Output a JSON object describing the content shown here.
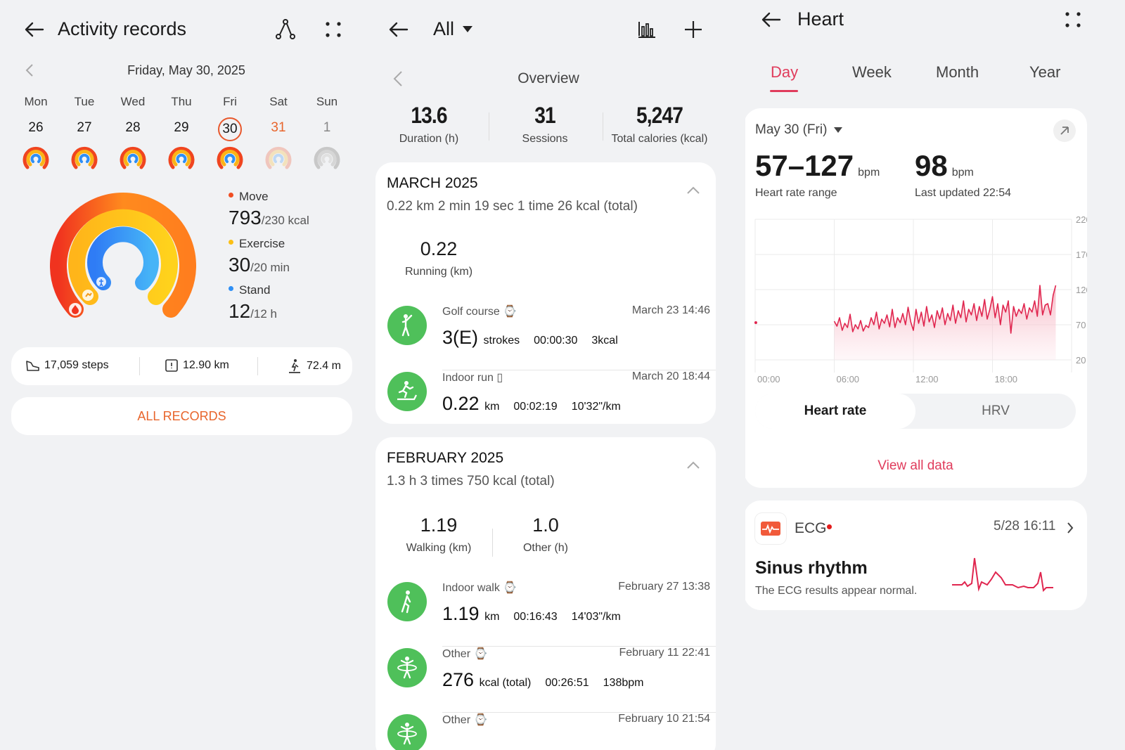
{
  "activity": {
    "title": "Activity records",
    "date": "Friday, May 30, 2025",
    "week": [
      {
        "day": "Mon",
        "date": "26",
        "state": "full"
      },
      {
        "day": "Tue",
        "date": "27",
        "state": "full"
      },
      {
        "day": "Wed",
        "date": "28",
        "state": "full"
      },
      {
        "day": "Thu",
        "date": "29",
        "state": "full"
      },
      {
        "day": "Fri",
        "date": "30",
        "state": "selected"
      },
      {
        "day": "Sat",
        "date": "31",
        "state": "faded"
      },
      {
        "day": "Sun",
        "date": "1",
        "state": "empty"
      }
    ],
    "move": {
      "label": "Move",
      "value": "793",
      "goal": "/230 kcal",
      "color": "#f04e23"
    },
    "exercise": {
      "label": "Exercise",
      "value": "30",
      "goal": "/20 min",
      "color": "#fbbf15"
    },
    "stand": {
      "label": "Stand",
      "value": "12",
      "goal": "/12 h",
      "color": "#2f8ff5"
    },
    "steps": "17,059 steps",
    "distance": "12.90 km",
    "climb": "72.4 m",
    "all_records": "ALL RECORDS"
  },
  "records": {
    "filter": "All",
    "overview_label": "Overview",
    "overview": [
      {
        "value": "13.6",
        "label": "Duration (h)"
      },
      {
        "value": "31",
        "label": "Sessions"
      },
      {
        "value": "5,247",
        "label": "Total calories (kcal)"
      }
    ],
    "march": {
      "title": "MARCH 2025",
      "summary": "0.22 km  2 min 19 sec  1 time  26 kcal (total)",
      "stat_value": "0.22",
      "stat_label": "Running (km)",
      "items": [
        {
          "name": "Golf course",
          "time": "March 23 14:46",
          "big": "3(E)",
          "unit": "strokes",
          "e1": "00:00:30",
          "e2": "3kcal",
          "icon": "golf-icon"
        },
        {
          "name": "Indoor run",
          "time": "March 20 18:44",
          "big": "0.22",
          "unit": "km",
          "e1": "00:02:19",
          "e2": "10'32\"/km",
          "icon": "treadmill-icon"
        }
      ]
    },
    "february": {
      "title": "FEBRUARY 2025",
      "summary": "1.3 h  3 times  750 kcal (total)",
      "stats": [
        {
          "value": "1.19",
          "label": "Walking (km)"
        },
        {
          "value": "1.0",
          "label": "Other (h)"
        }
      ],
      "items": [
        {
          "name": "Indoor walk",
          "time": "February 27 13:38",
          "big": "1.19",
          "unit": "km",
          "e1": "00:16:43",
          "e2": "14'03\"/km",
          "icon": "walk-icon"
        },
        {
          "name": "Other",
          "time": "February 11 22:41",
          "big": "276",
          "unit": "kcal (total)",
          "e1": "00:26:51",
          "e2": "138bpm",
          "icon": "hula-hoop-icon"
        },
        {
          "name": "Other",
          "time": "February 10 21:54",
          "big": "",
          "unit": "",
          "e1": "",
          "e2": "",
          "icon": "hula-hoop-icon"
        }
      ]
    }
  },
  "heart": {
    "title": "Heart",
    "tabs": [
      "Day",
      "Week",
      "Month",
      "Year"
    ],
    "active_tab": "Day",
    "date": "May 30 (Fri)",
    "range_value": "57–127",
    "range_unit": "bpm",
    "range_label": "Heart rate range",
    "last_value": "98",
    "last_unit": "bpm",
    "last_label": "Last updated 22:54",
    "toggle": [
      "Heart rate",
      "HRV"
    ],
    "view_all": "View all data",
    "ecg_label": "ECG",
    "ecg_time": "5/28 16:11",
    "ecg_result": "Sinus rhythm",
    "ecg_desc": "The ECG results appear normal.",
    "accent": "#e03c5c"
  },
  "chart_data": {
    "type": "line",
    "title": "",
    "xlabel": "",
    "ylabel": "",
    "x_ticks": [
      "00:00",
      "06:00",
      "12:00",
      "18:00"
    ],
    "y_ticks": [
      220,
      170,
      120,
      70,
      20
    ],
    "ylim": [
      20,
      220
    ],
    "xlim_hours": [
      0,
      24
    ],
    "grid": true,
    "series": [
      {
        "x_hours": [
          0.05,
          6.0,
          6.2,
          6.4,
          6.6,
          6.8,
          7.0,
          7.2,
          7.4,
          7.6,
          7.8,
          8.0,
          8.2,
          8.4,
          8.6,
          8.8,
          9.0,
          9.2,
          9.4,
          9.6,
          9.8,
          10.0,
          10.2,
          10.4,
          10.6,
          10.8,
          11.0,
          11.2,
          11.4,
          11.6,
          11.8,
          12.0,
          12.2,
          12.4,
          12.6,
          12.8,
          13.0,
          13.2,
          13.4,
          13.6,
          13.8,
          14.0,
          14.2,
          14.4,
          14.6,
          14.8,
          15.0,
          15.2,
          15.4,
          15.6,
          15.8,
          16.0,
          16.2,
          16.4,
          16.6,
          16.8,
          17.0,
          17.2,
          17.4,
          17.6,
          17.8,
          18.0,
          18.2,
          18.4,
          18.6,
          18.8,
          19.0,
          19.2,
          19.4,
          19.6,
          19.8,
          20.0,
          20.2,
          20.4,
          20.6,
          20.8,
          21.0,
          21.2,
          21.4,
          21.6,
          21.8,
          22.0,
          22.2,
          22.4,
          22.6,
          22.8
        ],
        "values": [
          73,
          75,
          68,
          80,
          62,
          72,
          66,
          85,
          60,
          70,
          64,
          76,
          61,
          69,
          66,
          80,
          70,
          88,
          64,
          78,
          72,
          84,
          67,
          92,
          66,
          80,
          73,
          86,
          70,
          95,
          74,
          62,
          92,
          72,
          88,
          68,
          96,
          74,
          84,
          66,
          90,
          78,
          94,
          70,
          86,
          76,
          98,
          72,
          90,
          80,
          104,
          74,
          92,
          84,
          100,
          76,
          96,
          82,
          106,
          78,
          92,
          110,
          80,
          100,
          70,
          98,
          88,
          104,
          58,
          96,
          82,
          92,
          86,
          100,
          78,
          94,
          88,
          104,
          82,
          126,
          84,
          98,
          100,
          84,
          112,
          126
        ]
      }
    ]
  }
}
